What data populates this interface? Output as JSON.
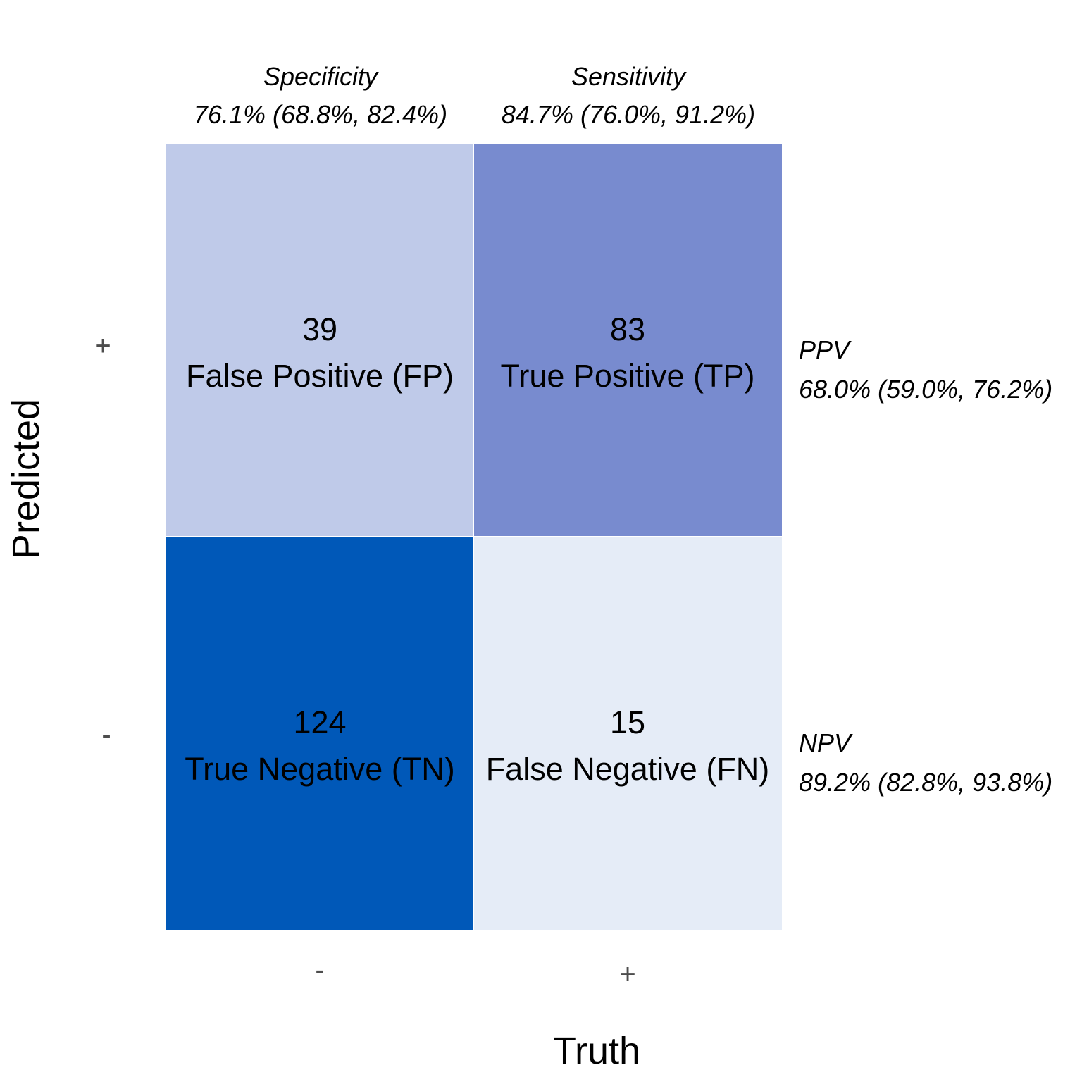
{
  "chart_data": {
    "type": "heatmap",
    "xlabel": "Truth",
    "ylabel": "Predicted",
    "x_categories": [
      "-",
      "+"
    ],
    "y_categories": [
      "+",
      "-"
    ],
    "cells": [
      {
        "truth": "-",
        "predicted": "+",
        "value": 39,
        "label": "False Positive (FP)",
        "color": "#bfcae9"
      },
      {
        "truth": "+",
        "predicted": "+",
        "value": 83,
        "label": "True Positive (TP)",
        "color": "#788bcf"
      },
      {
        "truth": "-",
        "predicted": "-",
        "value": 124,
        "label": "True Negative (TN)",
        "color": "#0058b8"
      },
      {
        "truth": "+",
        "predicted": "-",
        "value": 15,
        "label": "False Negative (FN)",
        "color": "#e5ecf7"
      }
    ],
    "column_metrics": [
      {
        "truth": "-",
        "label": "Specificity",
        "value": "76.1% (68.8%, 82.4%)"
      },
      {
        "truth": "+",
        "label": "Sensitivity",
        "value": "84.7% (76.0%, 91.2%)"
      }
    ],
    "row_metrics": [
      {
        "predicted": "+",
        "label": "PPV",
        "value": "68.0% (59.0%, 76.2%)"
      },
      {
        "predicted": "-",
        "label": "NPV",
        "value": "89.2% (82.8%, 93.8%)"
      }
    ]
  }
}
